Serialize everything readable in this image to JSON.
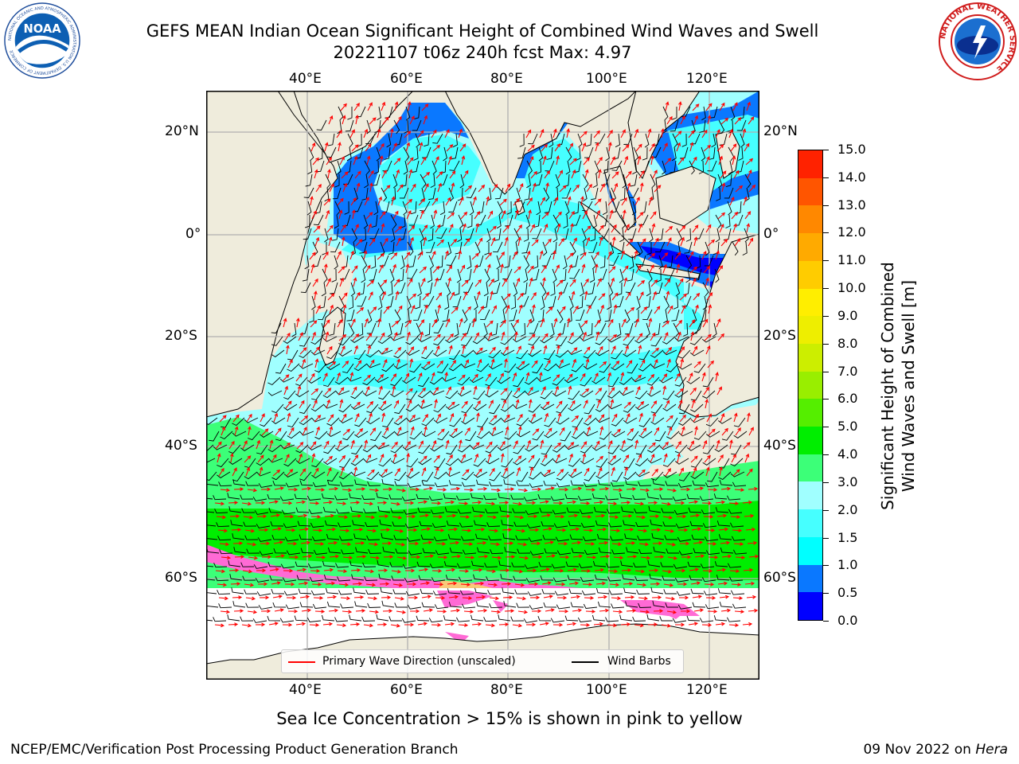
{
  "title": {
    "line1": "GEFS MEAN Indian Ocean Significant Height of Combined Wind Waves and Swell",
    "line2": "20221107 t06z 240h fcst   Max: 4.97"
  },
  "logos": {
    "left": {
      "icon": "noaa-logo",
      "text": "NOAA",
      "ring_text": "NATIONAL OCEANIC AND ATMOSPHERIC ADMINISTRATION  U.S. DEPARTMENT OF COMMERCE"
    },
    "right": {
      "icon": "nws-logo",
      "ring_text": "NATIONAL WEATHER SERVICE"
    }
  },
  "map": {
    "lon_ticks": [
      "40°E",
      "60°E",
      "80°E",
      "100°E",
      "120°E"
    ],
    "lat_ticks": [
      "20°N",
      "0°",
      "20°S",
      "40°S",
      "60°S"
    ],
    "colors": {
      "land": "#efecdc",
      "sea_ice": "#ff6ad5",
      "sea_ice_yellow": "#f9c97a",
      "wave_direction": "#ff0000",
      "wind_barbs": "#000000",
      "grid": "#b0b0b0"
    }
  },
  "colorbar": {
    "title_line1": "Significant Height of Combined",
    "title_line2": "Wind Waves and Swell [m]",
    "labels": [
      "0.0",
      "0.5",
      "1.0",
      "1.5",
      "2.0",
      "3.0",
      "4.0",
      "5.0",
      "6.0",
      "7.0",
      "8.0",
      "9.0",
      "10.0",
      "11.0",
      "12.0",
      "13.0",
      "14.0",
      "15.0"
    ],
    "colors": [
      "#0000ff",
      "#0a78ff",
      "#00ffff",
      "#46ffff",
      "#a0ffff",
      "#3cff78",
      "#00ee00",
      "#55ee00",
      "#99ee00",
      "#ccee00",
      "#eeee00",
      "#ffee00",
      "#ffcc00",
      "#ffaa00",
      "#ff8800",
      "#ff5500",
      "#ff2200"
    ]
  },
  "legend": {
    "wave_label": "Primary Wave Direction (unscaled)",
    "wind_label": "Wind Barbs"
  },
  "caption": "Sea Ice Concentration > 15% is shown in pink to yellow",
  "footer": {
    "left": "NCEP/EMC/Verification Post Processing Product Generation Branch",
    "date": "09 Nov 2022 on ",
    "host": "Hera"
  }
}
